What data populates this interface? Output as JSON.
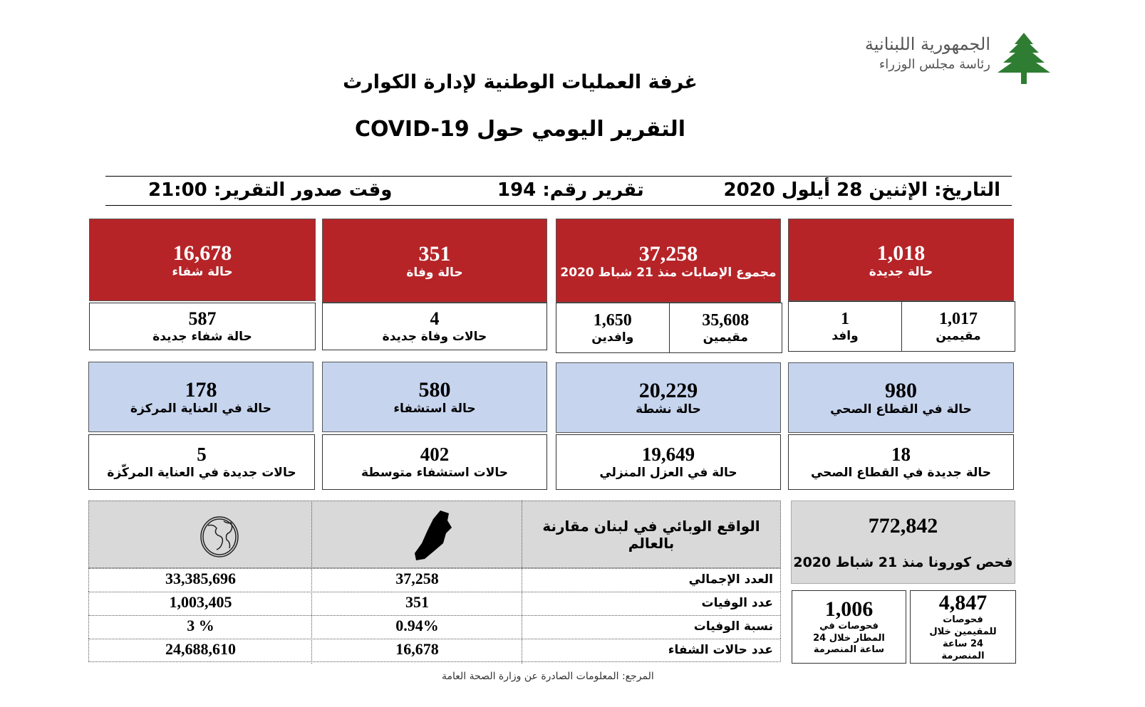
{
  "header": {
    "logo_line1": "الجمهورية اللبنانية",
    "logo_line2": "رئاسة مجلس الوزراء",
    "title": "غرفة العمليات الوطنية لإدارة الكوارث",
    "subtitle": "التقرير اليومي حول COVID-19"
  },
  "info": {
    "date": "التاريخ: الإثنين 28 أيلول 2020",
    "report_no": "تقرير رقم: 194",
    "time": "وقت صدور التقرير: 21:00"
  },
  "row1": [
    {
      "value": "1,018",
      "label": "حالة جديدة",
      "sub": [
        {
          "value": "1,017",
          "label": "مقيمين"
        },
        {
          "value": "1",
          "label": "وافد"
        }
      ]
    },
    {
      "value": "37,258",
      "label": "مجموع الإصابات منذ 21 شباط 2020",
      "sub": [
        {
          "value": "35,608",
          "label": "مقيمين"
        },
        {
          "value": "1,650",
          "label": "وافدين"
        }
      ]
    },
    {
      "value": "351",
      "label": "حالة وفاة",
      "sub_value": "4",
      "sub_label": "حالات وفاة جديدة"
    },
    {
      "value": "16,678",
      "label": "حالة شفاء",
      "sub_value": "587",
      "sub_label": "حالة شفاء جديدة"
    }
  ],
  "row2": [
    {
      "value": "980",
      "label": "حالة في القطاع الصحي",
      "sub_value": "18",
      "sub_label": "حالة جديدة في القطاع الصحي"
    },
    {
      "value": "20,229",
      "label": "حالة نشطة",
      "sub_value": "19,649",
      "sub_label": "حالة في العزل المنزلي"
    },
    {
      "value": "580",
      "label": "حالة استشفاء",
      "sub_value": "402",
      "sub_label": "حالات استشفاء متوسطة"
    },
    {
      "value": "178",
      "label": "حالة في العناية المركزة",
      "sub_value": "5",
      "sub_label": "حالات جديدة في العناية المركّزة"
    }
  ],
  "comparison": {
    "title": "الواقع الوبائي في لبنان مقارنة بالعالم",
    "rows": [
      {
        "label": "العدد الإجمالي",
        "lebanon": "37,258",
        "world": "33,385,696"
      },
      {
        "label": "عدد الوفيات",
        "lebanon": "351",
        "world": "1,003,405"
      },
      {
        "label": "نسبة الوفيات",
        "lebanon": "0.94%",
        "world": "3 %"
      },
      {
        "label": "عدد حالات الشفاء",
        "lebanon": "16,678",
        "world": "24,688,610"
      }
    ]
  },
  "tests": {
    "value": "772,842",
    "label": "فحص كورونا منذ 21 شباط 2020",
    "residents": {
      "value": "4,847",
      "label": "فحوصات للمقيمين خلال 24 ساعة المنصرمة"
    },
    "airport": {
      "value": "1,006",
      "label": "فحوصات في المطار خلال 24 ساعة المنصرمة"
    }
  },
  "footer": "المرجع: المعلومات الصادرة عن وزارة الصحة العامة",
  "colors": {
    "red": "#b62428",
    "blue": "#c6d4ee",
    "gray": "#d9d9d9"
  }
}
